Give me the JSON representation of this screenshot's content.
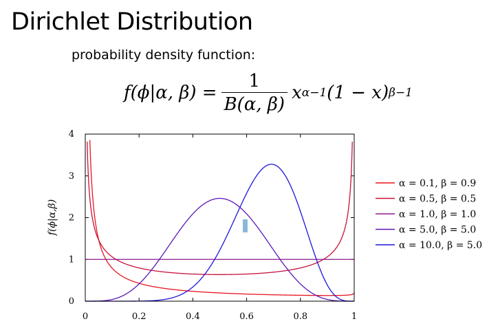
{
  "slide": {
    "title": "Dirichlet Distribution",
    "subtitle": "probability density function:",
    "formula": {
      "lhs": "f(ϕ|α, β) =",
      "numerator": "1",
      "denominator": "B(α, β)",
      "base1": "x",
      "exp1": "α−1",
      "base2": "(1 − x)",
      "exp2": "β−1"
    }
  },
  "chart_data": {
    "type": "line",
    "title": "",
    "xlabel": "",
    "ylabel": "f(ϕ|α,β)",
    "xlim": [
      0,
      1
    ],
    "ylim": [
      0,
      4
    ],
    "xticks": [
      "0",
      "0.2",
      "0.4",
      "0.6",
      "0.8",
      "1"
    ],
    "yticks": [
      "0",
      "1",
      "2",
      "3",
      "4"
    ],
    "legend_position": "right",
    "series": [
      {
        "name": "α = 0.1, β = 0.9",
        "alpha": 0.1,
        "beta": 0.9,
        "color": "#e8141f",
        "x": [
          0.02,
          0.05,
          0.1,
          0.2,
          0.3,
          0.4,
          0.5,
          0.6,
          0.7,
          0.8,
          0.9,
          0.95,
          0.99
        ],
        "y": [
          3.85,
          1.67,
          0.87,
          0.44,
          0.3,
          0.23,
          0.18,
          0.16,
          0.15,
          0.14,
          0.15,
          0.16,
          0.22
        ]
      },
      {
        "name": "α = 0.5, β = 0.5",
        "alpha": 0.5,
        "beta": 0.5,
        "color": "#c8103a",
        "x": [
          0.01,
          0.03,
          0.05,
          0.1,
          0.2,
          0.3,
          0.4,
          0.5,
          0.6,
          0.7,
          0.8,
          0.9,
          0.95,
          0.97,
          0.99
        ],
        "y": [
          3.2,
          1.87,
          1.46,
          1.06,
          0.8,
          0.69,
          0.65,
          0.64,
          0.65,
          0.69,
          0.8,
          1.06,
          1.46,
          1.87,
          3.2
        ]
      },
      {
        "name": "α = 1.0, β = 1.0",
        "alpha": 1.0,
        "beta": 1.0,
        "color": "#8a1a8c",
        "x": [
          0,
          1
        ],
        "y": [
          1,
          1
        ]
      },
      {
        "name": "α = 5.0, β = 5.0",
        "alpha": 5.0,
        "beta": 5.0,
        "color": "#5a16b8",
        "x": [
          0,
          0.1,
          0.2,
          0.3,
          0.4,
          0.5,
          0.6,
          0.7,
          0.8,
          0.9,
          1
        ],
        "y": [
          0,
          0.03,
          0.37,
          1.21,
          2.09,
          2.46,
          2.09,
          1.21,
          0.37,
          0.03,
          0
        ]
      },
      {
        "name": "α = 10.0, β = 5.0",
        "alpha": 10.0,
        "beta": 5.0,
        "color": "#1d15d8",
        "x": [
          0,
          0.2,
          0.3,
          0.4,
          0.5,
          0.6,
          0.7,
          0.75,
          0.8,
          0.9,
          1
        ],
        "y": [
          0,
          0.0,
          0.05,
          0.37,
          1.22,
          2.45,
          3.27,
          3.15,
          2.54,
          0.79,
          0
        ]
      }
    ]
  }
}
